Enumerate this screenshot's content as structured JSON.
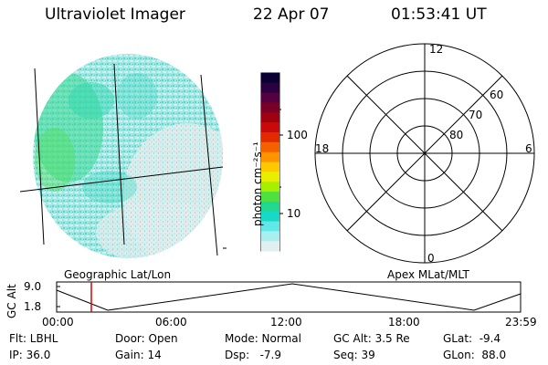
{
  "header": {
    "instrument": "Ultraviolet Imager",
    "date": "22 Apr 07",
    "time": "01:53:41 UT"
  },
  "colorbar": {
    "label": "photon cm⁻²s⁻¹",
    "ticks": [
      "100",
      "10"
    ],
    "colors": [
      "#0a0033",
      "#2a0040",
      "#550040",
      "#7a0028",
      "#a00010",
      "#c80a0a",
      "#e22a00",
      "#f56000",
      "#ff9400",
      "#ffc800",
      "#e8ee00",
      "#a8ee00",
      "#50e040",
      "#20d890",
      "#18d8c8",
      "#60e8e8",
      "#a8f0f0",
      "#e0f0f0"
    ]
  },
  "polar_grid": {
    "hour_labels": {
      "top": "12",
      "left": "18",
      "right": "6",
      "bottom": "0"
    },
    "lat_labels": [
      "60",
      "70",
      "80"
    ]
  },
  "timeline": {
    "left_title": "Geographic Lat/Lon",
    "right_title": "Apex MLat/MLT",
    "y_axis_label": "GC Alt",
    "y_ticks": [
      "9.0",
      "1.8"
    ],
    "time_ticks": [
      "00:00",
      "06:00",
      "12:00",
      "18:00",
      "23:59"
    ]
  },
  "status": {
    "filter": "Flt: LBHL",
    "door": "Door: Open",
    "mode": "Mode: Normal",
    "gc_alt": "GC Alt: 3.5 Re",
    "glat": "GLat:  -9.4",
    "ip": "IP: 36.0",
    "gain": "Gain: 14",
    "dsp": "Dsp:   -7.9",
    "seq": "Seq: 39",
    "glon": "GLon:  88.0"
  }
}
